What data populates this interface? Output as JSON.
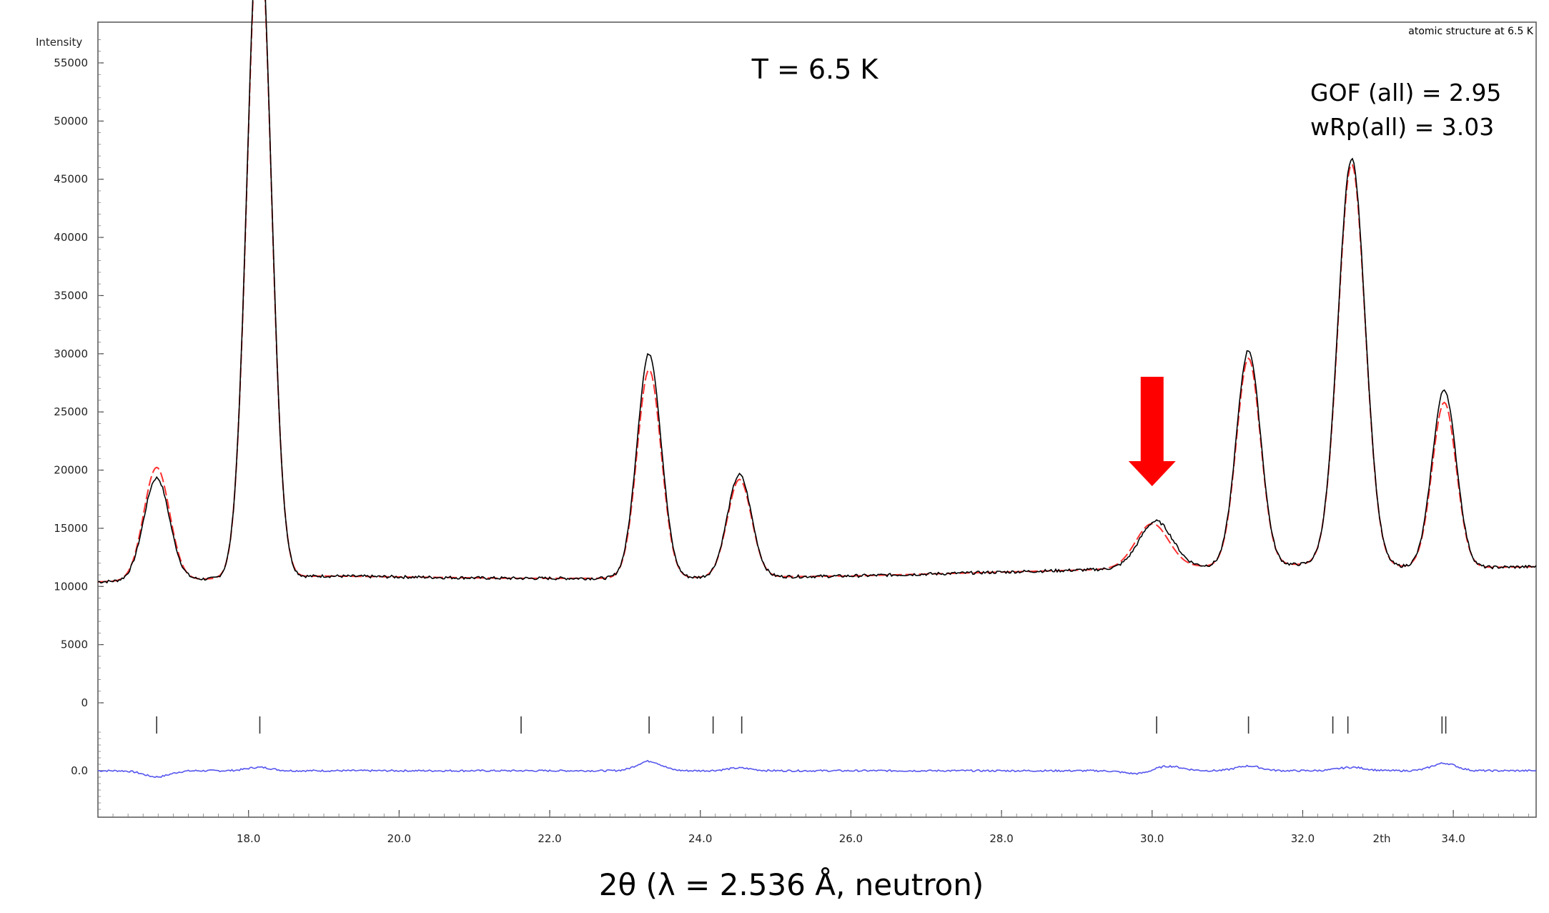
{
  "chart_data": {
    "type": "line",
    "title": "atomic structure at 6.5 K",
    "ylabel": "Intensity",
    "xlabel": "2θ (λ = 2.536 Å, neutron)",
    "x_axis_unit_label": "2th",
    "annotations": {
      "temperature": "T = 6.5 K",
      "gof": "GOF (all) = 2.95",
      "wrp": "wRp(all) =  3.03"
    },
    "xlim": [
      16.0,
      35.1
    ],
    "main_ylim": [
      0,
      58500
    ],
    "diff_ylim": [
      -4000,
      4000
    ],
    "x_ticks": [
      18.0,
      20.0,
      22.0,
      24.0,
      26.0,
      28.0,
      30.0,
      32.0,
      34.0
    ],
    "x_tick_labels": [
      "18.0",
      "20.0",
      "22.0",
      "24.0",
      "26.0",
      "28.0",
      "30.0",
      "32.0",
      "34.0"
    ],
    "y_ticks": [
      0,
      5000,
      10000,
      15000,
      20000,
      25000,
      30000,
      35000,
      40000,
      45000,
      50000,
      55000
    ],
    "y_tick_labels": [
      "0",
      "5000",
      "10000",
      "15000",
      "20000",
      "25000",
      "30000",
      "35000",
      "40000",
      "45000",
      "50000",
      "55000"
    ],
    "diff_tick_label": "0.0",
    "background": [
      [
        16.0,
        10400
      ],
      [
        19.0,
        10900
      ],
      [
        21.5,
        10700
      ],
      [
        23.0,
        10700
      ],
      [
        26.0,
        10900
      ],
      [
        29.0,
        11400
      ],
      [
        30.5,
        11700
      ],
      [
        32.0,
        11900
      ],
      [
        34.0,
        11600
      ],
      [
        35.1,
        11700
      ]
    ],
    "peaks_observed": [
      {
        "x": 16.78,
        "height": 8800,
        "width": 0.17
      },
      {
        "x": 18.14,
        "height": 57000,
        "width": 0.16
      },
      {
        "x": 23.32,
        "height": 19300,
        "width": 0.16
      },
      {
        "x": 24.52,
        "height": 8800,
        "width": 0.16
      },
      {
        "x": 30.05,
        "height": 4000,
        "width": 0.22
      },
      {
        "x": 31.28,
        "height": 18500,
        "width": 0.16
      },
      {
        "x": 32.65,
        "height": 35000,
        "width": 0.18
      },
      {
        "x": 33.88,
        "height": 15300,
        "width": 0.16
      }
    ],
    "peaks_calculated": [
      {
        "x": 16.78,
        "height": 9700,
        "width": 0.17
      },
      {
        "x": 18.14,
        "height": 56500,
        "width": 0.16
      },
      {
        "x": 23.32,
        "height": 17900,
        "width": 0.16
      },
      {
        "x": 24.52,
        "height": 8400,
        "width": 0.16
      },
      {
        "x": 30.0,
        "height": 3800,
        "width": 0.22
      },
      {
        "x": 31.28,
        "height": 17800,
        "width": 0.16
      },
      {
        "x": 32.65,
        "height": 34500,
        "width": 0.18
      },
      {
        "x": 33.88,
        "height": 14200,
        "width": 0.16
      }
    ],
    "reflection_positions": [
      16.78,
      18.15,
      21.62,
      23.32,
      24.17,
      24.55,
      30.06,
      31.28,
      32.4,
      32.6,
      33.85,
      33.9
    ],
    "series": [
      {
        "color": "#000000"
      },
      {
        "color": "#ff3030"
      },
      {
        "color": "#5555ee"
      }
    ],
    "arrow_x": 30.0,
    "arrow_color": "#ff0000"
  }
}
